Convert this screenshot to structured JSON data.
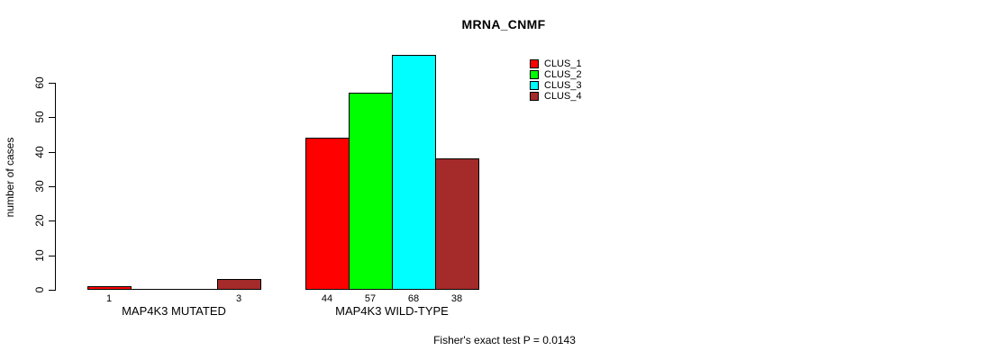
{
  "chart_data": {
    "type": "bar",
    "title": "MRNA_CNMF",
    "ylabel": "number of cases",
    "xlabel": "",
    "groups": [
      "MAP4K3 MUTATED",
      "MAP4K3 WILD-TYPE"
    ],
    "series": [
      {
        "name": "CLUS_1",
        "color": "#FF0000",
        "values": [
          1,
          44
        ]
      },
      {
        "name": "CLUS_2",
        "color": "#00FF00",
        "values": [
          0,
          57
        ]
      },
      {
        "name": "CLUS_3",
        "color": "#00FFFF",
        "values": [
          0,
          68
        ]
      },
      {
        "name": "CLUS_4",
        "color": "#A52A2A",
        "values": [
          3,
          38
        ]
      }
    ],
    "yticks": [
      0,
      10,
      20,
      30,
      40,
      50,
      60
    ],
    "ylim": [
      0,
      68
    ],
    "grid": false,
    "legend_position": "top-right",
    "value_labels": "shown under each non-zero bar",
    "annotation": "Fisher's exact test P = 0.0143"
  }
}
